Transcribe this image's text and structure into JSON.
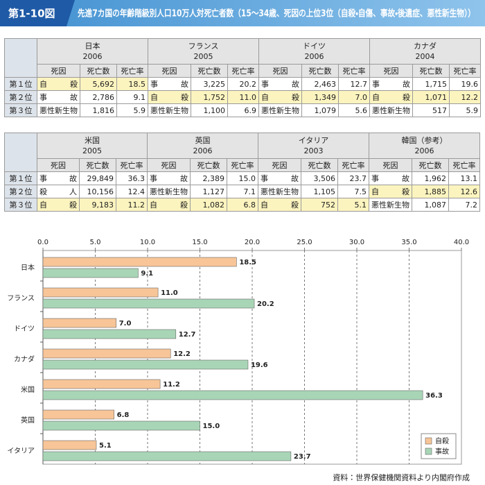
{
  "header": {
    "label": "第1-10図",
    "title": "先進7カ国の年齢階級別人口10万人対死亡者数（15～34歳、死因の上位3位（自殺・自傷、事故・後遺症、悪性新生物））"
  },
  "tables": [
    {
      "columns": [
        "死因",
        "死亡数",
        "死亡率"
      ],
      "rank_labels": [
        "第１位",
        "第２位",
        "第３位"
      ],
      "countries": [
        {
          "name": "日本",
          "year": "2006"
        },
        {
          "name": "フランス",
          "year": "2005"
        },
        {
          "name": "ドイツ",
          "year": "2006"
        },
        {
          "name": "カナダ",
          "year": "2004"
        }
      ],
      "rows": [
        [
          [
            "自　殺",
            "5,692",
            "18.5"
          ],
          [
            "事　故",
            "3,225",
            "20.2"
          ],
          [
            "事　故",
            "2,463",
            "12.7"
          ],
          [
            "事　故",
            "1,715",
            "19.6"
          ]
        ],
        [
          [
            "事　故",
            "2,786",
            "9.1"
          ],
          [
            "自　殺",
            "1,752",
            "11.0"
          ],
          [
            "自　殺",
            "1,349",
            "7.0"
          ],
          [
            "自　殺",
            "1,071",
            "12.2"
          ]
        ],
        [
          [
            "悪性新生物",
            "1,816",
            "5.9"
          ],
          [
            "悪性新生物",
            "1,100",
            "6.9"
          ],
          [
            "悪性新生物",
            "1,079",
            "5.6"
          ],
          [
            "悪性新生物",
            "517",
            "5.9"
          ]
        ]
      ]
    },
    {
      "columns": [
        "死因",
        "死亡数",
        "死亡率"
      ],
      "rank_labels": [
        "第１位",
        "第２位",
        "第３位"
      ],
      "countries": [
        {
          "name": "米国",
          "year": "2005"
        },
        {
          "name": "英国",
          "year": "2006"
        },
        {
          "name": "イタリア",
          "year": "2003"
        },
        {
          "name": "韓国（参考）",
          "year": "2006"
        }
      ],
      "rows": [
        [
          [
            "事　故",
            "29,849",
            "36.3"
          ],
          [
            "事　故",
            "2,389",
            "15.0"
          ],
          [
            "事　故",
            "3,506",
            "23.7"
          ],
          [
            "事　故",
            "1,962",
            "13.1"
          ]
        ],
        [
          [
            "殺　人",
            "10,156",
            "12.4"
          ],
          [
            "悪性新生物",
            "1,127",
            "7.1"
          ],
          [
            "悪性新生物",
            "1,105",
            "7.5"
          ],
          [
            "自　殺",
            "1,885",
            "12.6"
          ]
        ],
        [
          [
            "自　殺",
            "9,183",
            "11.2"
          ],
          [
            "自　殺",
            "1,082",
            "6.8"
          ],
          [
            "自　殺",
            "752",
            "5.1"
          ],
          [
            "悪性新生物",
            "1,087",
            "7.2"
          ]
        ]
      ]
    }
  ],
  "chart_data": {
    "type": "hbar",
    "categories": [
      "日本",
      "フランス",
      "ドイツ",
      "カナダ",
      "米国",
      "英国",
      "イタリア"
    ],
    "series": [
      {
        "name": "自殺",
        "color": "#f7c597",
        "values": [
          18.5,
          11.0,
          7.0,
          12.2,
          11.2,
          6.8,
          5.1
        ],
        "value_labels": [
          "18.5",
          "11.0",
          "7.0",
          "12.2",
          "11.2",
          "6.8",
          "5.1"
        ]
      },
      {
        "name": "事故",
        "color": "#a8d5b6",
        "values": [
          9.1,
          20.2,
          12.7,
          19.6,
          36.3,
          15.0,
          23.7
        ],
        "value_labels": [
          "9.1",
          "20.2",
          "12.7",
          "19.6",
          "36.3",
          "15.0",
          "23.7"
        ]
      }
    ],
    "xlim": [
      0,
      40
    ],
    "xticks": [
      {
        "value": 0,
        "label": "0.0"
      },
      {
        "value": 5,
        "label": "5.0"
      },
      {
        "value": 10,
        "label": "10.0"
      },
      {
        "value": 15,
        "label": "15.0"
      },
      {
        "value": 20,
        "label": "20.0"
      },
      {
        "value": 25,
        "label": "25.0"
      },
      {
        "value": 30,
        "label": "30.0"
      },
      {
        "value": 35,
        "label": "35.0"
      },
      {
        "value": 40,
        "label": "40.0"
      }
    ],
    "grid": true,
    "legend": "lower right"
  },
  "source": "資料：世界保健機関資料より内閣府作成"
}
